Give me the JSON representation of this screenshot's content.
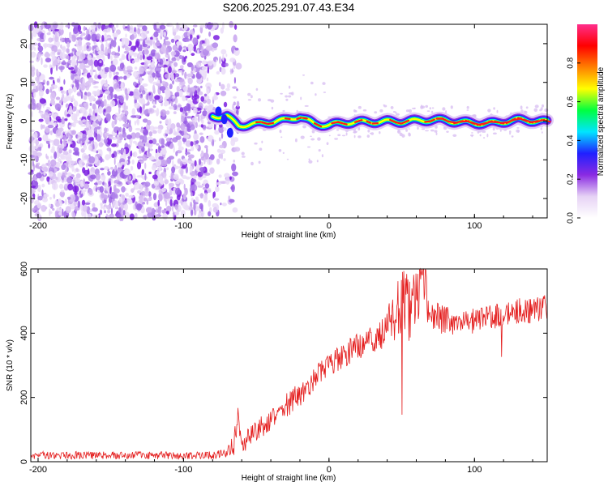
{
  "title": "S206.2025.291.07.43.E34",
  "colors": {
    "snr_line": "#e41e1e",
    "noise": "#8a2be2",
    "frame": "#000000"
  },
  "chart_data": [
    {
      "type": "heatmap",
      "name": "spectrogram",
      "xlabel": "Height of straight line (km)",
      "ylabel": "Frequency (Hz)",
      "xlim": [
        -205,
        150
      ],
      "ylim": [
        -25,
        25
      ],
      "xticks": [
        -200,
        -100,
        0,
        100
      ],
      "yticks": [
        -20,
        -10,
        0,
        10,
        20
      ],
      "colorbar": {
        "label": "Normalized spectral amplitude",
        "range": [
          0,
          1
        ],
        "ticks": [
          0.0,
          0.2,
          0.4,
          0.6,
          0.8
        ],
        "tick_labels": [
          "0.0",
          "0.2",
          "0.4",
          "0.6",
          "0.8"
        ],
        "colormap": [
          "#ffffff",
          "#e6d2f5",
          "#8a2be2",
          "#2020ff",
          "#00e5ff",
          "#00ff40",
          "#ffff00",
          "#ff8000",
          "#ff0000",
          "#ff2e8c"
        ]
      },
      "noise_region_x": [
        -205,
        -62
      ],
      "signal_track": {
        "x": [
          -80,
          -70,
          -62,
          -50,
          -40,
          -30,
          -20,
          -10,
          0,
          20,
          40,
          60,
          80,
          100,
          115,
          130,
          150
        ],
        "freq": [
          1.5,
          1.5,
          -1.0,
          -1.0,
          -0.5,
          0.2,
          1.5,
          -0.5,
          -1.0,
          -0.5,
          0.2,
          0.0,
          0.0,
          -0.2,
          -0.5,
          0.0,
          0.0
        ]
      }
    },
    {
      "type": "line",
      "name": "snr",
      "xlabel": "Height of straight line (km)",
      "ylabel": "SNR (10 * v/v)",
      "xlim": [
        -205,
        150
      ],
      "ylim": [
        0,
        600
      ],
      "xticks": [
        -200,
        -100,
        0,
        100
      ],
      "yticks": [
        0,
        200,
        400,
        600
      ],
      "series": [
        {
          "name": "SNR",
          "x": [
            -205,
            -180,
            -150,
            -120,
            -100,
            -80,
            -70,
            -65,
            -62,
            -60,
            -55,
            -50,
            -40,
            -30,
            -20,
            -10,
            0,
            10,
            20,
            30,
            40,
            45,
            50,
            55,
            60,
            65,
            70,
            80,
            90,
            100,
            110,
            120,
            130,
            140,
            150
          ],
          "y": [
            20,
            20,
            20,
            20,
            18,
            20,
            25,
            60,
            150,
            40,
            80,
            100,
            130,
            170,
            210,
            260,
            300,
            330,
            360,
            380,
            420,
            450,
            500,
            470,
            520,
            560,
            460,
            440,
            430,
            440,
            450,
            460,
            470,
            470,
            480
          ],
          "noise_amplitude": [
            12,
            12,
            12,
            12,
            12,
            12,
            15,
            40,
            50,
            30,
            30,
            35,
            35,
            40,
            40,
            40,
            35,
            40,
            40,
            45,
            60,
            90,
            110,
            110,
            100,
            100,
            60,
            45,
            40,
            40,
            40,
            40,
            40,
            40,
            40
          ]
        }
      ]
    }
  ]
}
